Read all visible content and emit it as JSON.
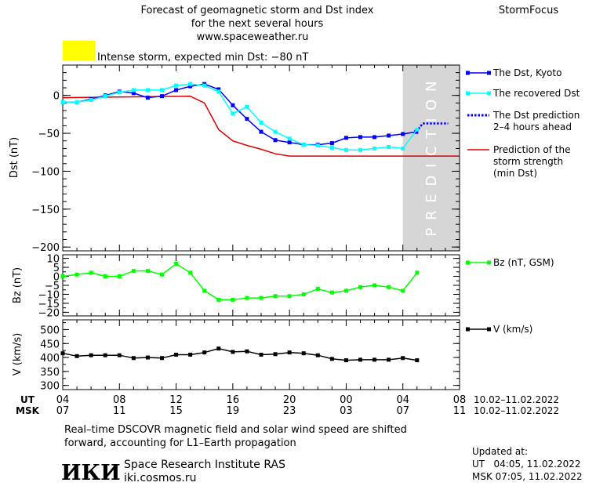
{
  "header": {
    "title_line1": "Forecast of geomagnetic storm and Dst index",
    "title_line2": "for the next several hours",
    "url": "www.spaceweather.ru",
    "brand": "StormFocus",
    "alert_color": "#ffff00",
    "alert_text": "Intense storm, expected min Dst: −80 nT"
  },
  "prediction_label": "P R E D I C T I O N",
  "chart_data": [
    {
      "type": "line",
      "ylabel": "Dst (nT)",
      "ylim": [
        -205,
        40
      ],
      "yticks": [
        0,
        -50,
        -100,
        -150,
        -200
      ],
      "ytick_labels": [
        "0",
        "−50",
        "−100",
        "−150",
        "−200"
      ],
      "xlim": [
        4,
        32
      ],
      "prediction_region": [
        28,
        32
      ],
      "series": [
        {
          "name": "The Dst, Kyoto",
          "color": "#0000ff",
          "marker": "square",
          "x": [
            4,
            5,
            6,
            7,
            8,
            9,
            10,
            11,
            12,
            13,
            14,
            15,
            16,
            17,
            18,
            19,
            20,
            21,
            22,
            23,
            24,
            25,
            26,
            27,
            28,
            28.95
          ],
          "y": [
            -9,
            -9,
            -5,
            0,
            5,
            3,
            -3,
            -1,
            7,
            12,
            15,
            8,
            -13,
            -31,
            -48,
            -59,
            -62,
            -65,
            -65,
            -63,
            -56,
            -55,
            -55,
            -53,
            -51,
            -48
          ]
        },
        {
          "name": "The recovered Dst",
          "color": "#00ffff",
          "marker": "square",
          "x": [
            4,
            5,
            6,
            7,
            8,
            9,
            10,
            11,
            12,
            13,
            14,
            15,
            16,
            17,
            18,
            19,
            20,
            21,
            22,
            23,
            24,
            25,
            26,
            27,
            28,
            29
          ],
          "y": [
            -9,
            -9,
            -6,
            -1,
            4,
            7,
            7,
            7,
            13,
            15,
            13,
            5,
            -24,
            -15,
            -36,
            -48,
            -57,
            -65,
            -66,
            -69,
            -72,
            -72,
            -70,
            -68,
            -70,
            -45
          ]
        },
        {
          "name": "The Dst prediction\n2–4 hours ahead",
          "color": "#0000ff",
          "dash": true,
          "x": [
            28.95,
            29.4,
            31.2
          ],
          "y": [
            -48,
            -37,
            -37
          ]
        },
        {
          "name": "Prediction of the\nstorm strength\n(min Dst)",
          "color": "#dd0000",
          "x": [
            4,
            13,
            14,
            15,
            16,
            17,
            18,
            19,
            20,
            21,
            22,
            23,
            24,
            25,
            26,
            27,
            28,
            29,
            30,
            31,
            32
          ],
          "y": [
            -3,
            -1,
            -10,
            -45,
            -60,
            -66,
            -71,
            -77,
            -80,
            -80,
            -80,
            -80,
            -80,
            -80,
            -80,
            -80,
            -80,
            -80,
            -80,
            -80,
            -80
          ]
        }
      ]
    },
    {
      "type": "line",
      "ylabel": "Bz (nT)",
      "ylim": [
        -22,
        12
      ],
      "yticks": [
        10,
        5,
        0,
        -5,
        -10,
        -15,
        -20
      ],
      "ytick_labels": [
        "10",
        "5",
        "0",
        "−5",
        "−10",
        "−15",
        "−20"
      ],
      "xlim": [
        4,
        32
      ],
      "series": [
        {
          "name": "Bz (nT, GSM)",
          "color": "#00ff00",
          "marker": "square",
          "x": [
            4,
            5,
            6,
            7,
            8,
            9,
            10,
            11,
            12,
            13,
            14,
            15,
            16,
            17,
            18,
            19,
            20,
            21,
            22,
            23,
            24,
            25,
            26,
            27,
            28,
            29
          ],
          "y": [
            0,
            1,
            2,
            0,
            0,
            3,
            3,
            1,
            7,
            2,
            -8,
            -13,
            -13,
            -12,
            -12,
            -11,
            -11,
            -10,
            -7,
            -9,
            -8,
            -6,
            -5,
            -6,
            -8,
            2
          ]
        }
      ]
    },
    {
      "type": "line",
      "ylabel": "V (km/s)",
      "ylim": [
        285,
        535
      ],
      "yticks": [
        500,
        450,
        400,
        350,
        300
      ],
      "ytick_labels": [
        "500",
        "450",
        "400",
        "350",
        "300"
      ],
      "xlim": [
        4,
        32
      ],
      "series": [
        {
          "name": "V (km/s)",
          "color": "#000000",
          "marker": "square",
          "x": [
            4,
            5,
            6,
            7,
            8,
            9,
            10,
            11,
            12,
            13,
            14,
            15,
            16,
            17,
            18,
            19,
            20,
            21,
            22,
            23,
            24,
            25,
            26,
            27,
            28,
            29
          ],
          "y": [
            415,
            405,
            408,
            408,
            408,
            398,
            400,
            398,
            410,
            410,
            418,
            432,
            420,
            422,
            410,
            412,
            418,
            415,
            408,
            395,
            390,
            392,
            392,
            392,
            398,
            390
          ]
        }
      ]
    }
  ],
  "xaxis": {
    "ticks": [
      4,
      8,
      12,
      16,
      20,
      24,
      28,
      32
    ],
    "ut_label": "UT",
    "msk_label": "MSK",
    "ut_labels": [
      "04",
      "08",
      "12",
      "16",
      "20",
      "00",
      "04",
      "08"
    ],
    "msk_labels": [
      "07",
      "11",
      "15",
      "19",
      "23",
      "03",
      "07",
      "11"
    ],
    "ut_date": "10.02–11.02.2022",
    "msk_date": "10.02–11.02.2022"
  },
  "footer": {
    "note_line1": "Real–time DSCOVR magnetic field and solar wind speed are shifted",
    "note_line2": "forward, accounting for L1–Earth propagation",
    "logo": "ИКИ",
    "institute": "Space Research Institute RAS",
    "site": "iki.cosmos.ru",
    "updated_label": "Updated at:",
    "updated_ut": "UT   04:05, 11.02.2022",
    "updated_msk": "MSK 07:05, 11.02.2022"
  }
}
